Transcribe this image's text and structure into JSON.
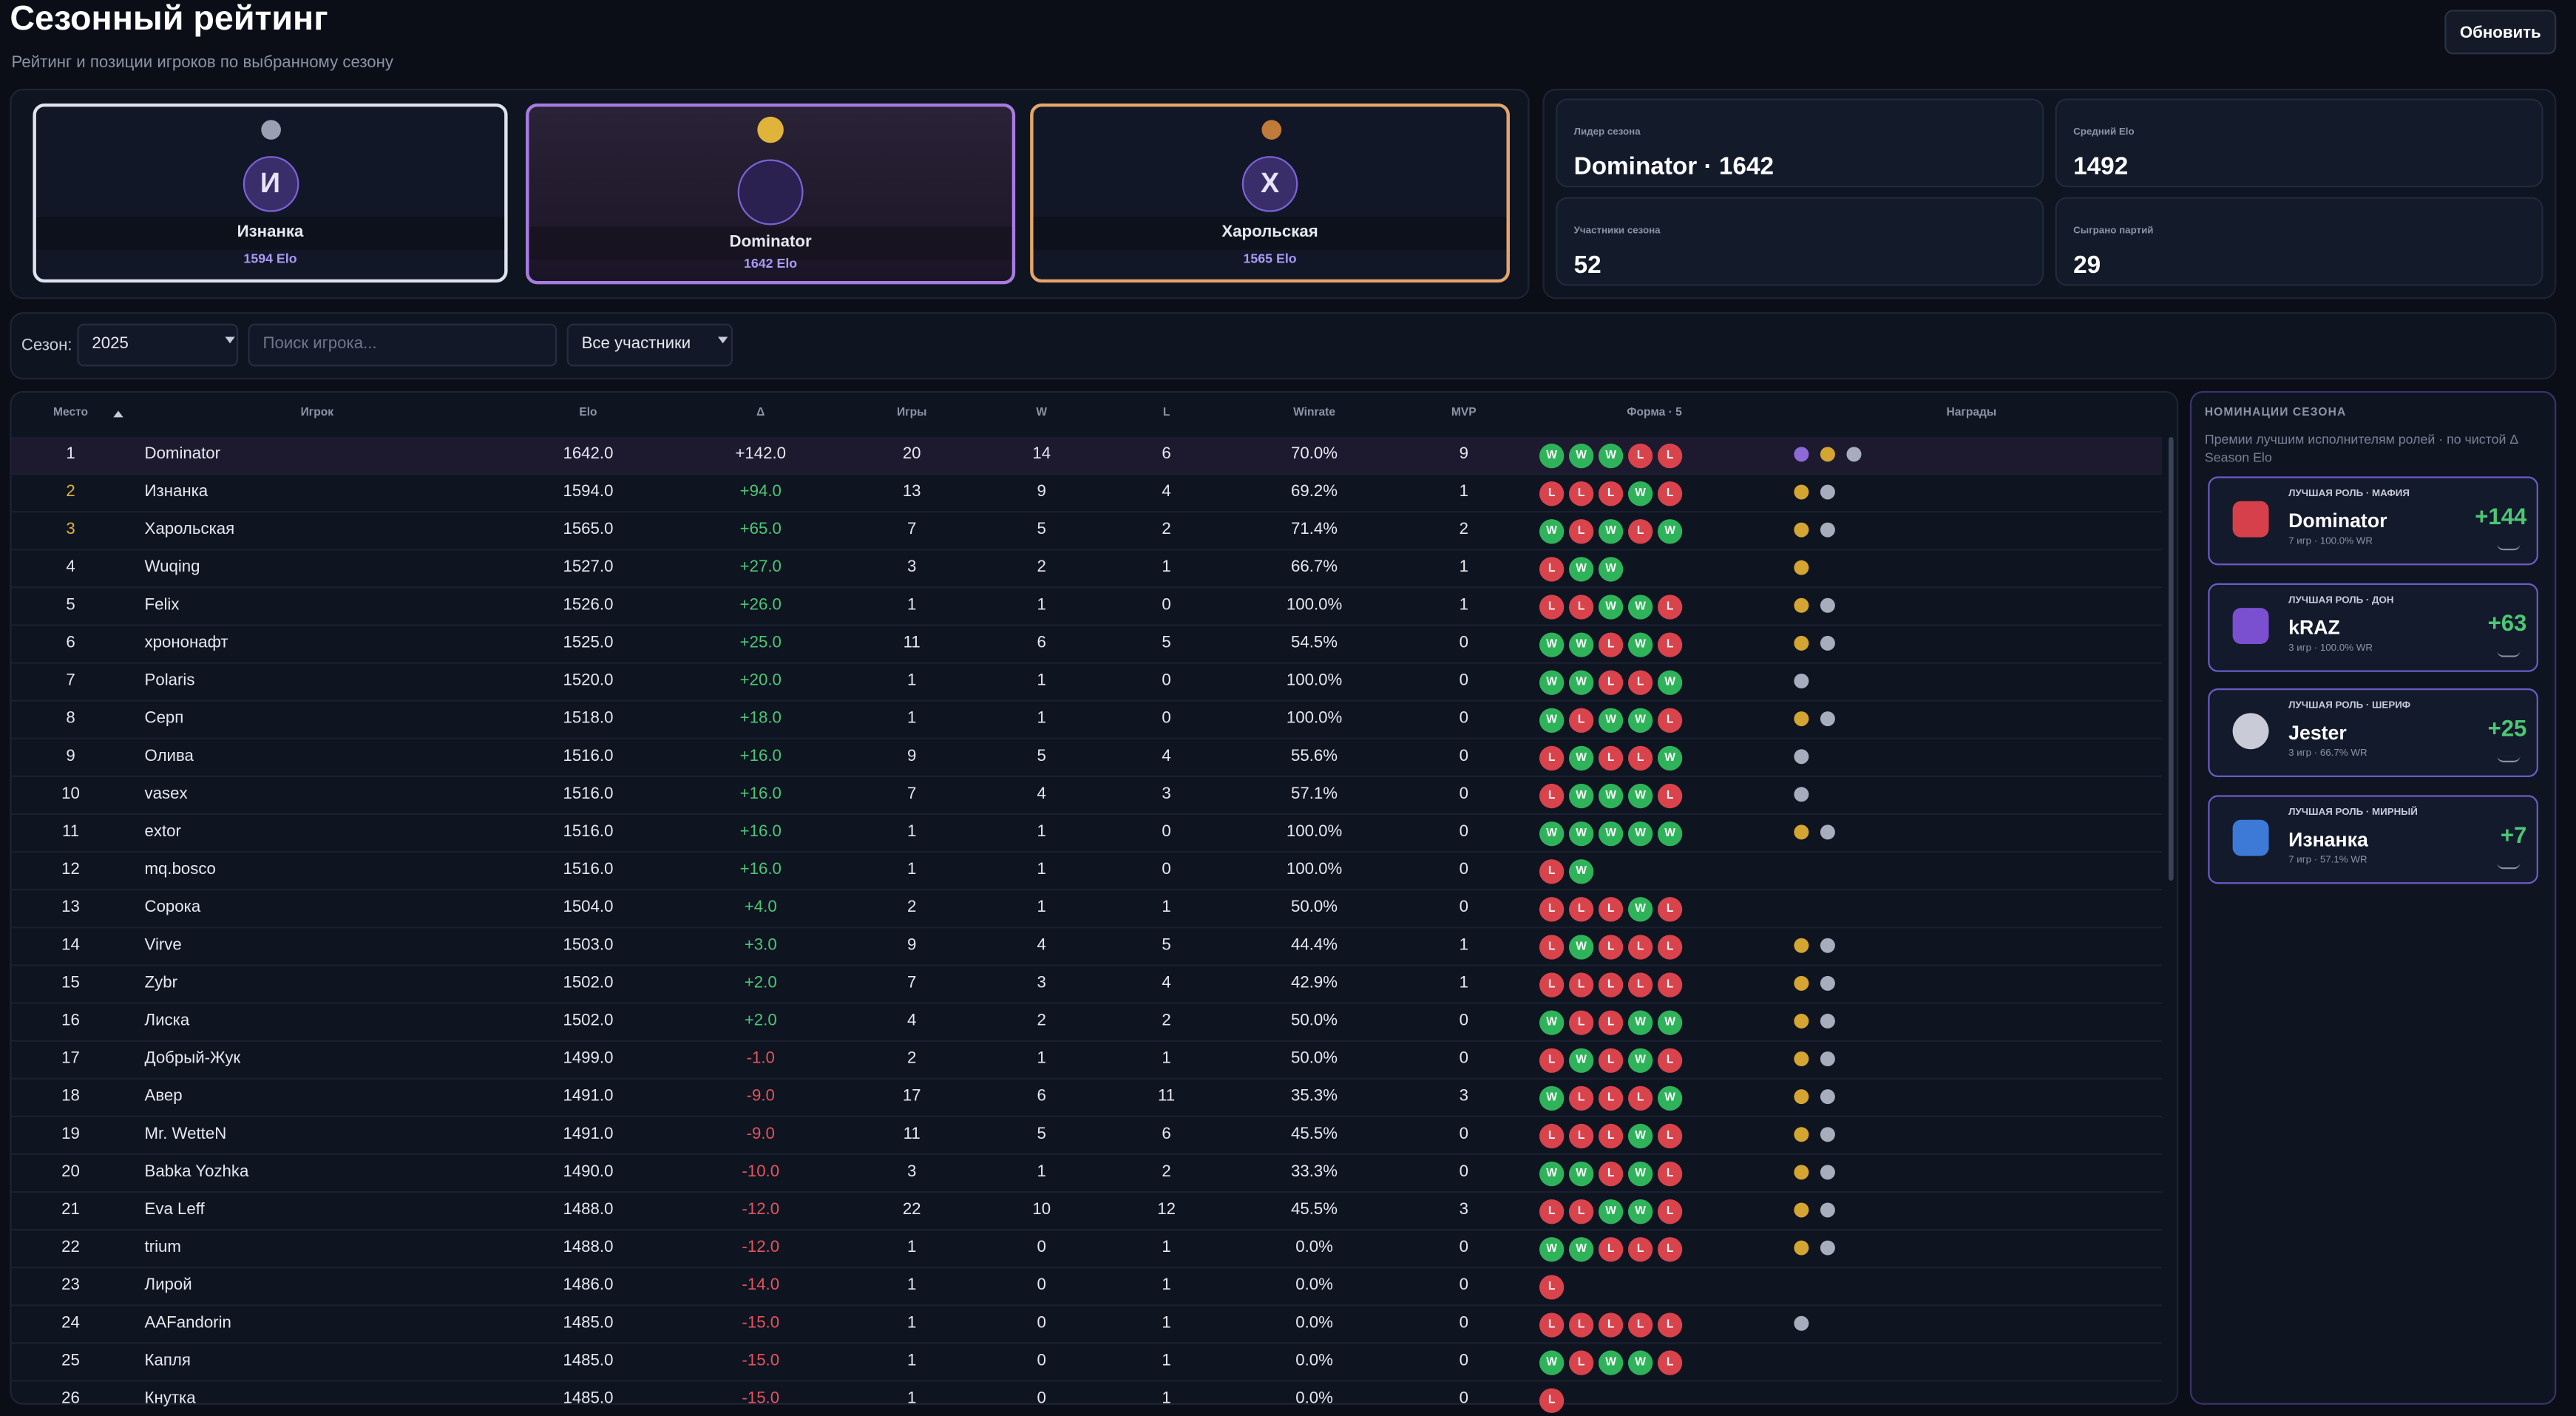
{
  "header": {
    "title": "Сезонный рейтинг",
    "subtitle": "Рейтинг и позиции игроков по выбранному сезону",
    "button": "Обновить"
  },
  "podium": [
    {
      "avatar": "И",
      "name": "Изнанка",
      "elo": "1594 Elo"
    },
    {
      "avatar": "",
      "name": "Dominator",
      "elo": "1642 Elo"
    },
    {
      "avatar": "Х",
      "name": "Харольская",
      "elo": "1565 Elo"
    }
  ],
  "stats": [
    {
      "label": "Лидер сезона",
      "value": "Dominator · 1642"
    },
    {
      "label": "Средний Elo",
      "value": "1492"
    },
    {
      "label": "Участники сезона",
      "value": "52"
    },
    {
      "label": "Сыграно партий",
      "value": "29"
    }
  ],
  "filters": {
    "season_label": "Сезон:",
    "season": "2025",
    "search_placeholder": "Поиск игрока...",
    "scope": "Все участники"
  },
  "table": {
    "headers": [
      "Место",
      "Игрок",
      "Elo",
      "Δ",
      "Игры",
      "W",
      "L",
      "Winrate",
      "MVP",
      "Форма · 5",
      "Награды"
    ],
    "rows": [
      [
        "1",
        "Dominator",
        "1642.0",
        "+142.0",
        "20",
        "14",
        "6",
        "70.0%",
        "9",
        [
          "W",
          "W",
          "W",
          "L",
          "L"
        ]
      ],
      [
        "2",
        "Изнанка",
        "1594.0",
        "+94.0",
        "13",
        "9",
        "4",
        "69.2%",
        "1",
        [
          "L",
          "L",
          "L",
          "W",
          "L"
        ]
      ],
      [
        "3",
        "Харольская",
        "1565.0",
        "+65.0",
        "7",
        "5",
        "2",
        "71.4%",
        "2",
        [
          "W",
          "L",
          "W",
          "L",
          "W"
        ]
      ],
      [
        "4",
        "Wuqing",
        "1527.0",
        "+27.0",
        "3",
        "2",
        "1",
        "66.7%",
        "1",
        [
          "L",
          "W",
          "W"
        ]
      ],
      [
        "5",
        "Felix",
        "1526.0",
        "+26.0",
        "1",
        "1",
        "0",
        "100.0%",
        "1",
        [
          "L",
          "L",
          "W",
          "W",
          "L"
        ]
      ],
      [
        "6",
        "хрононафт",
        "1525.0",
        "+25.0",
        "11",
        "6",
        "5",
        "54.5%",
        "0",
        [
          "W",
          "W",
          "L",
          "W",
          "L"
        ]
      ],
      [
        "7",
        "Polaris",
        "1520.0",
        "+20.0",
        "1",
        "1",
        "0",
        "100.0%",
        "0",
        [
          "W",
          "W",
          "L",
          "L",
          "W"
        ]
      ],
      [
        "8",
        "Серп",
        "1518.0",
        "+18.0",
        "1",
        "1",
        "0",
        "100.0%",
        "0",
        [
          "W",
          "L",
          "W",
          "W",
          "L"
        ]
      ],
      [
        "9",
        "Олива",
        "1516.0",
        "+16.0",
        "9",
        "5",
        "4",
        "55.6%",
        "0",
        [
          "L",
          "W",
          "L",
          "L",
          "W"
        ]
      ],
      [
        "10",
        "vasex",
        "1516.0",
        "+16.0",
        "7",
        "4",
        "3",
        "57.1%",
        "0",
        [
          "L",
          "W",
          "W",
          "W",
          "L"
        ]
      ],
      [
        "11",
        "extor",
        "1516.0",
        "+16.0",
        "1",
        "1",
        "0",
        "100.0%",
        "0",
        [
          "W",
          "W",
          "W",
          "W",
          "W"
        ]
      ],
      [
        "12",
        "mq.bosco",
        "1516.0",
        "+16.0",
        "1",
        "1",
        "0",
        "100.0%",
        "0",
        [
          "L",
          "W"
        ]
      ],
      [
        "13",
        "Сорока",
        "1504.0",
        "+4.0",
        "2",
        "1",
        "1",
        "50.0%",
        "0",
        [
          "L",
          "L",
          "L",
          "W",
          "L"
        ]
      ],
      [
        "14",
        "Virve",
        "1503.0",
        "+3.0",
        "9",
        "4",
        "5",
        "44.4%",
        "1",
        [
          "L",
          "W",
          "L",
          "L",
          "L"
        ]
      ],
      [
        "15",
        "Zybr",
        "1502.0",
        "+2.0",
        "7",
        "3",
        "4",
        "42.9%",
        "1",
        [
          "L",
          "L",
          "L",
          "L",
          "L"
        ]
      ],
      [
        "16",
        "Лиска",
        "1502.0",
        "+2.0",
        "4",
        "2",
        "2",
        "50.0%",
        "0",
        [
          "W",
          "L",
          "L",
          "W",
          "W"
        ]
      ],
      [
        "17",
        "Добрый-Жук",
        "1499.0",
        "-1.0",
        "2",
        "1",
        "1",
        "50.0%",
        "0",
        [
          "L",
          "W",
          "L",
          "W",
          "L"
        ]
      ],
      [
        "18",
        "Авер",
        "1491.0",
        "-9.0",
        "17",
        "6",
        "11",
        "35.3%",
        "3",
        [
          "W",
          "L",
          "L",
          "L",
          "W"
        ]
      ],
      [
        "19",
        "Mr. WetteN",
        "1491.0",
        "-9.0",
        "11",
        "5",
        "6",
        "45.5%",
        "0",
        [
          "L",
          "L",
          "L",
          "W",
          "L"
        ]
      ],
      [
        "20",
        "Babka Yozhka",
        "1490.0",
        "-10.0",
        "3",
        "1",
        "2",
        "33.3%",
        "0",
        [
          "W",
          "W",
          "L",
          "W",
          "L"
        ]
      ],
      [
        "21",
        "Eva Leff",
        "1488.0",
        "-12.0",
        "22",
        "10",
        "12",
        "45.5%",
        "3",
        [
          "L",
          "L",
          "W",
          "W",
          "L"
        ]
      ],
      [
        "22",
        "trium",
        "1488.0",
        "-12.0",
        "1",
        "0",
        "1",
        "0.0%",
        "0",
        [
          "W",
          "W",
          "L",
          "L",
          "L"
        ]
      ],
      [
        "23",
        "Лирой",
        "1486.0",
        "-14.0",
        "1",
        "0",
        "1",
        "0.0%",
        "0",
        [
          "L"
        ]
      ],
      [
        "24",
        "AAFandorin",
        "1485.0",
        "-15.0",
        "1",
        "0",
        "1",
        "0.0%",
        "0",
        [
          "L",
          "L",
          "L",
          "L",
          "L"
        ]
      ],
      [
        "25",
        "Капля",
        "1485.0",
        "-15.0",
        "1",
        "0",
        "1",
        "0.0%",
        "0",
        [
          "W",
          "L",
          "W",
          "W",
          "L"
        ]
      ],
      [
        "26",
        "Кнутка",
        "1485.0",
        "-15.0",
        "1",
        "0",
        "1",
        "0.0%",
        "0",
        [
          "L"
        ]
      ]
    ]
  },
  "nominations": {
    "title": "НОМИНАЦИИ СЕЗОНА",
    "description": "Премии лучшим исполнителям ролей · по чистой Δ Season Elo",
    "cards": [
      {
        "role": "ЛУЧШАЯ РОЛЬ · МАФИЯ",
        "name": "Dominator",
        "meta": "7 игр · 100.0% WR",
        "delta": "+144"
      },
      {
        "role": "ЛУЧШАЯ РОЛЬ · ДОН",
        "name": "kRAZ",
        "meta": "3 игр · 100.0% WR",
        "delta": "+63"
      },
      {
        "role": "ЛУЧШАЯ РОЛЬ · ШЕРИФ",
        "name": "Jester",
        "meta": "3 игр · 66.7% WR",
        "delta": "+25"
      },
      {
        "role": "ЛУЧШАЯ РОЛЬ · МИРНЫЙ",
        "name": "Изнанка",
        "meta": "7 игр · 57.1% WR",
        "delta": "+7"
      }
    ]
  }
}
